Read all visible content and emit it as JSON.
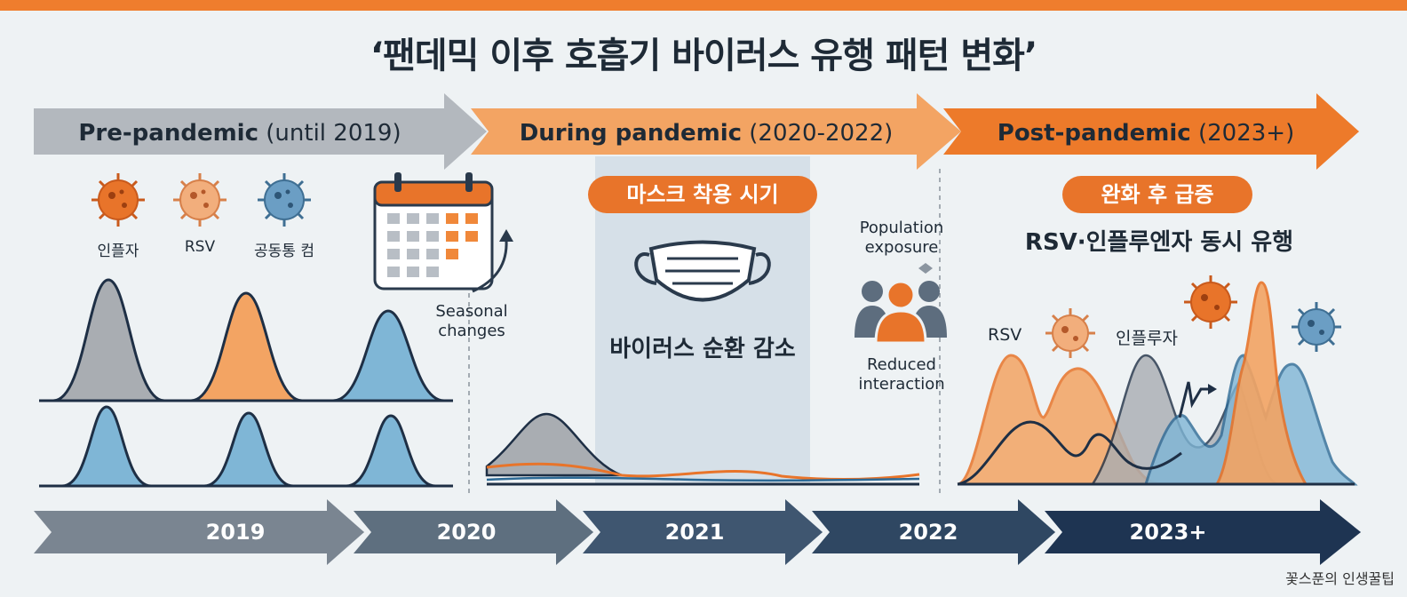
{
  "title": "‘팬데믹 이후 호흡기 바이러스 유행 패턴 변화’",
  "eras": [
    {
      "label": "Pre-pandemic",
      "sub": " (until 2019)"
    },
    {
      "label": "During pandemic",
      "sub": " (2020-2022)"
    },
    {
      "label": "Post-pandemic",
      "sub": " (2023+)"
    }
  ],
  "pre": {
    "viruses": [
      "인플자",
      "RSV",
      "공동통 컴"
    ],
    "calendar_note": "Seasonal\nchanges"
  },
  "during": {
    "pill": "마스크 착용 시기",
    "caption": "바이러스 순환 감소",
    "exposure": "Population\nexposure",
    "reduced": "Reduced\ninteraction"
  },
  "post": {
    "pill": "완화 후 급증",
    "headline": "RSV·인플루엔자 동시 유행",
    "label_rsv": "RSV",
    "label_flu": "인플루자"
  },
  "years": [
    "2019",
    "2020",
    "2021",
    "2022",
    "2023+"
  ],
  "credit": "꽃스푼의 인생꿀팁",
  "colors": {
    "orange": "#e8742a",
    "light_orange": "#f3a463",
    "gray": "#a9adb2",
    "blue": "#7fb6d6",
    "navy": "#1e2f45",
    "accent_bar": "#ef7d2d"
  }
}
